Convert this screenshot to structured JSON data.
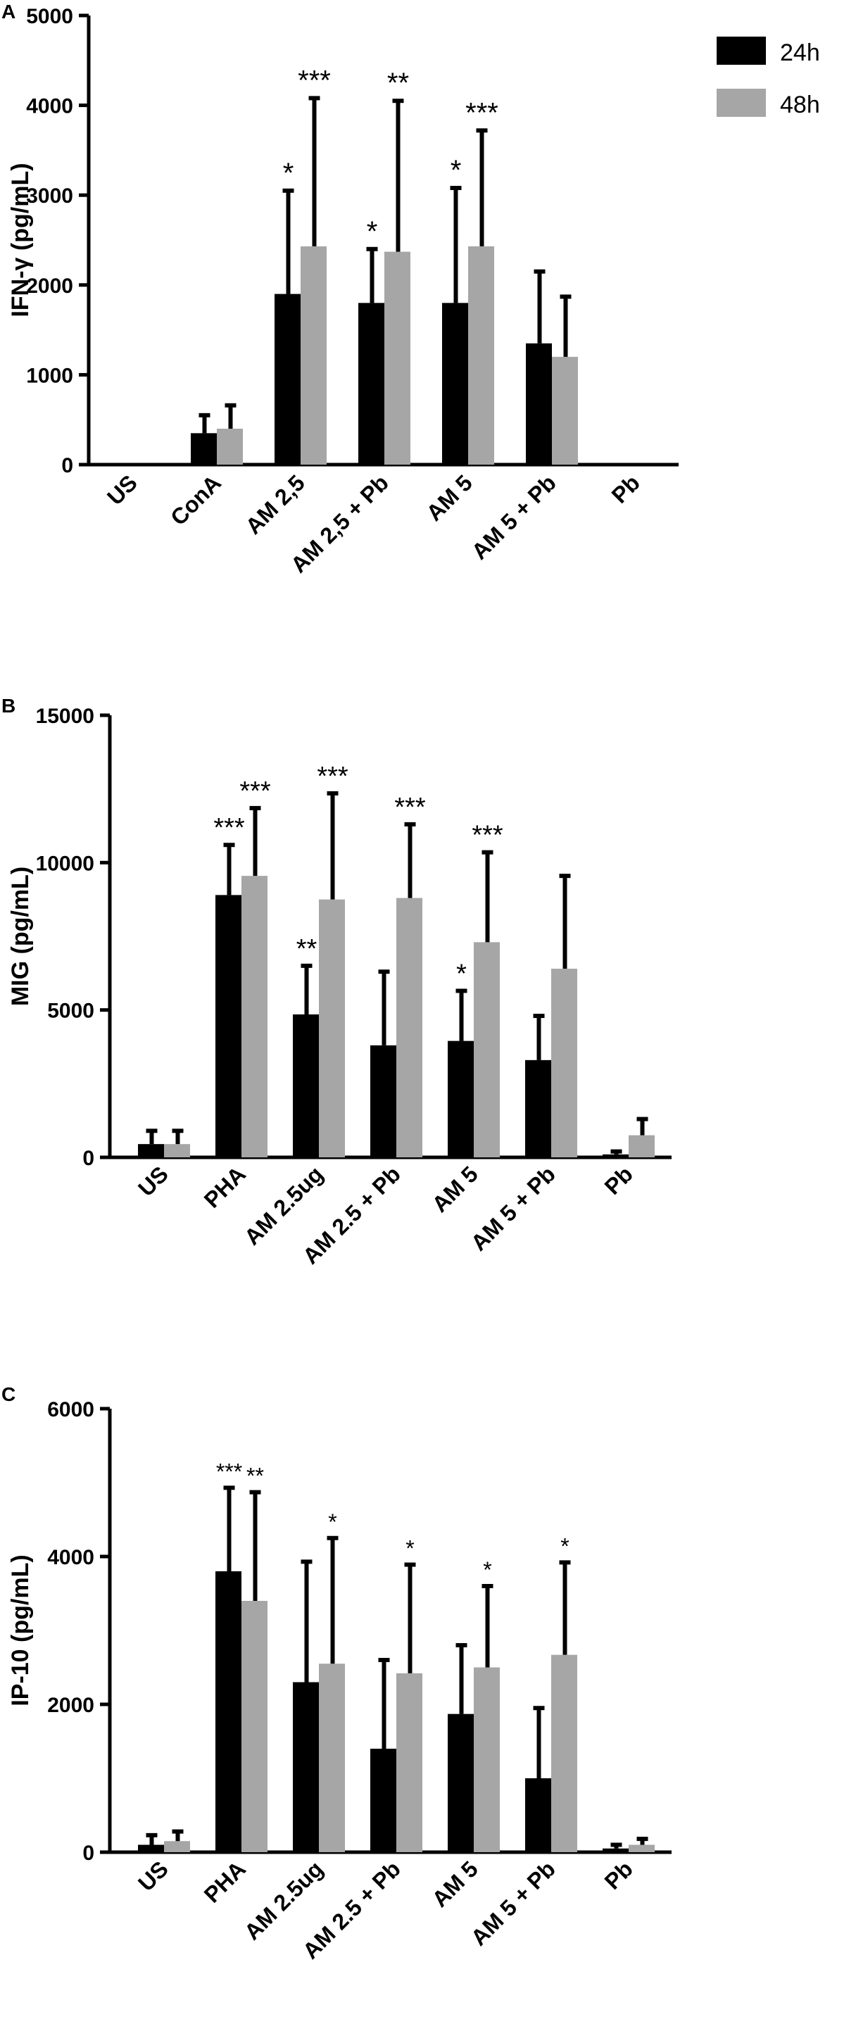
{
  "legend": {
    "entries": [
      {
        "label": "24h",
        "color": "#000000"
      },
      {
        "label": "48h",
        "color": "#a6a6a6"
      }
    ],
    "placement": "top-right"
  },
  "chart_data": [
    {
      "panel": "A",
      "type": "bar",
      "title": "",
      "ylabel": "IFN-γ (pg/mL)",
      "xlabel": "",
      "ylim": [
        0,
        5000
      ],
      "yticks": [
        "0",
        "1000",
        "2000",
        "3000",
        "4000",
        "5000"
      ],
      "categories": [
        "US",
        "ConA",
        "AM 2,5",
        "AM 2,5 + Pb",
        "AM 5",
        "AM 5 + Pb",
        "Pb"
      ],
      "series": [
        {
          "name": "24h",
          "color": "#000000",
          "values": [
            0,
            350,
            1900,
            1800,
            1800,
            1350,
            0
          ],
          "errors": [
            0,
            200,
            1150,
            600,
            1280,
            800,
            0
          ],
          "significance": [
            "",
            "",
            "*",
            "*",
            "*",
            "",
            ""
          ]
        },
        {
          "name": "48h",
          "color": "#a6a6a6",
          "values": [
            0,
            400,
            2430,
            2370,
            2430,
            1200,
            0
          ],
          "errors": [
            0,
            260,
            1650,
            1680,
            1290,
            670,
            0
          ],
          "significance": [
            "",
            "",
            "***",
            "**",
            "***",
            "",
            ""
          ]
        }
      ]
    },
    {
      "panel": "B",
      "type": "bar",
      "title": "",
      "ylabel": "MIG (pg/mL)",
      "xlabel": "",
      "ylim": [
        0,
        15000
      ],
      "yticks": [
        "0",
        "5000",
        "10000",
        "15000"
      ],
      "categories": [
        "US",
        "PHA",
        "AM 2.5ug",
        "AM 2.5 + Pb",
        "AM 5",
        "AM 5 + Pb",
        "Pb"
      ],
      "series": [
        {
          "name": "24h",
          "color": "#000000",
          "values": [
            450,
            8900,
            4850,
            3800,
            3950,
            3300,
            100
          ],
          "errors": [
            450,
            1700,
            1650,
            2500,
            1700,
            1500,
            100
          ],
          "significance": [
            "",
            "***",
            "**",
            "",
            "*",
            "",
            ""
          ]
        },
        {
          "name": "48h",
          "color": "#a6a6a6",
          "values": [
            450,
            9550,
            8750,
            8800,
            7300,
            6400,
            750
          ],
          "errors": [
            450,
            2300,
            3600,
            2500,
            3050,
            3150,
            550
          ],
          "significance": [
            "",
            "***",
            "***",
            "***",
            "***",
            "",
            ""
          ]
        }
      ]
    },
    {
      "panel": "C",
      "type": "bar",
      "title": "",
      "ylabel": "IP-10 (pg/mL)",
      "xlabel": "",
      "ylim": [
        0,
        6000
      ],
      "yticks": [
        "0",
        "2000",
        "4000",
        "6000"
      ],
      "categories": [
        "US",
        "PHA",
        "AM 2.5ug",
        "AM 2.5 + Pb",
        "AM 5",
        "AM 5 + Pb",
        "Pb"
      ],
      "series": [
        {
          "name": "24h",
          "color": "#000000",
          "values": [
            100,
            3800,
            2300,
            1400,
            1870,
            1000,
            50
          ],
          "errors": [
            130,
            1130,
            1630,
            1200,
            930,
            950,
            50
          ],
          "significance": [
            "",
            "***",
            "",
            "",
            "",
            "",
            ""
          ]
        },
        {
          "name": "48h",
          "color": "#a6a6a6",
          "values": [
            150,
            3400,
            2550,
            2420,
            2500,
            2670,
            100
          ],
          "errors": [
            130,
            1470,
            1700,
            1470,
            1100,
            1250,
            80
          ],
          "significance": [
            "",
            "**",
            "*",
            "*",
            "*",
            "*",
            ""
          ]
        }
      ]
    }
  ]
}
